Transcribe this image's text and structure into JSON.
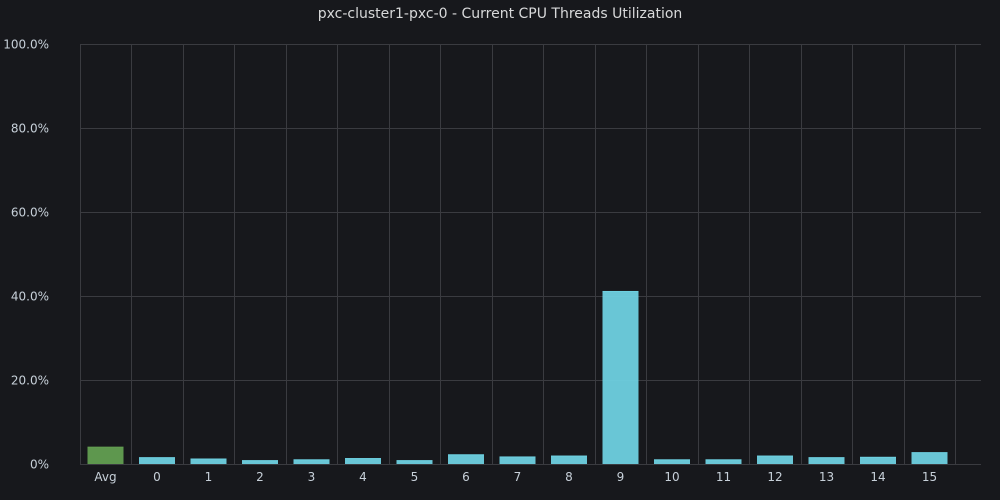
{
  "panel": {
    "title": "pxc-cluster1-pxc-0 - Current CPU Threads Utilization"
  },
  "colors": {
    "background": "#17181c",
    "grid": "#3a3b40",
    "avg_bar": "#629e51",
    "thread_bar": "#6ed0e0",
    "text": "#c7d0d9"
  },
  "chart_data": {
    "type": "bar",
    "title": "pxc-cluster1-pxc-0 - Current CPU Threads Utilization",
    "xlabel": "",
    "ylabel": "",
    "categories": [
      "Avg",
      "0",
      "1",
      "2",
      "3",
      "4",
      "5",
      "6",
      "7",
      "8",
      "9",
      "10",
      "11",
      "12",
      "13",
      "14",
      "15"
    ],
    "values": [
      4.1,
      1.6,
      1.3,
      0.9,
      1.1,
      1.4,
      0.9,
      2.3,
      1.8,
      2.0,
      41.2,
      1.1,
      1.1,
      2.0,
      1.6,
      1.7,
      2.8
    ],
    "bar_colors": [
      "#629e51",
      "#6ed0e0",
      "#6ed0e0",
      "#6ed0e0",
      "#6ed0e0",
      "#6ed0e0",
      "#6ed0e0",
      "#6ed0e0",
      "#6ed0e0",
      "#6ed0e0",
      "#6ed0e0",
      "#6ed0e0",
      "#6ed0e0",
      "#6ed0e0",
      "#6ed0e0",
      "#6ed0e0",
      "#6ed0e0"
    ],
    "ylim": [
      0,
      100
    ],
    "yticks": [
      0,
      20,
      40,
      60,
      80,
      100
    ],
    "ytick_labels": [
      "0%",
      "20.0%",
      "40.0%",
      "60.0%",
      "80.0%",
      "100.0%"
    ],
    "grid": true,
    "legend": "none"
  }
}
